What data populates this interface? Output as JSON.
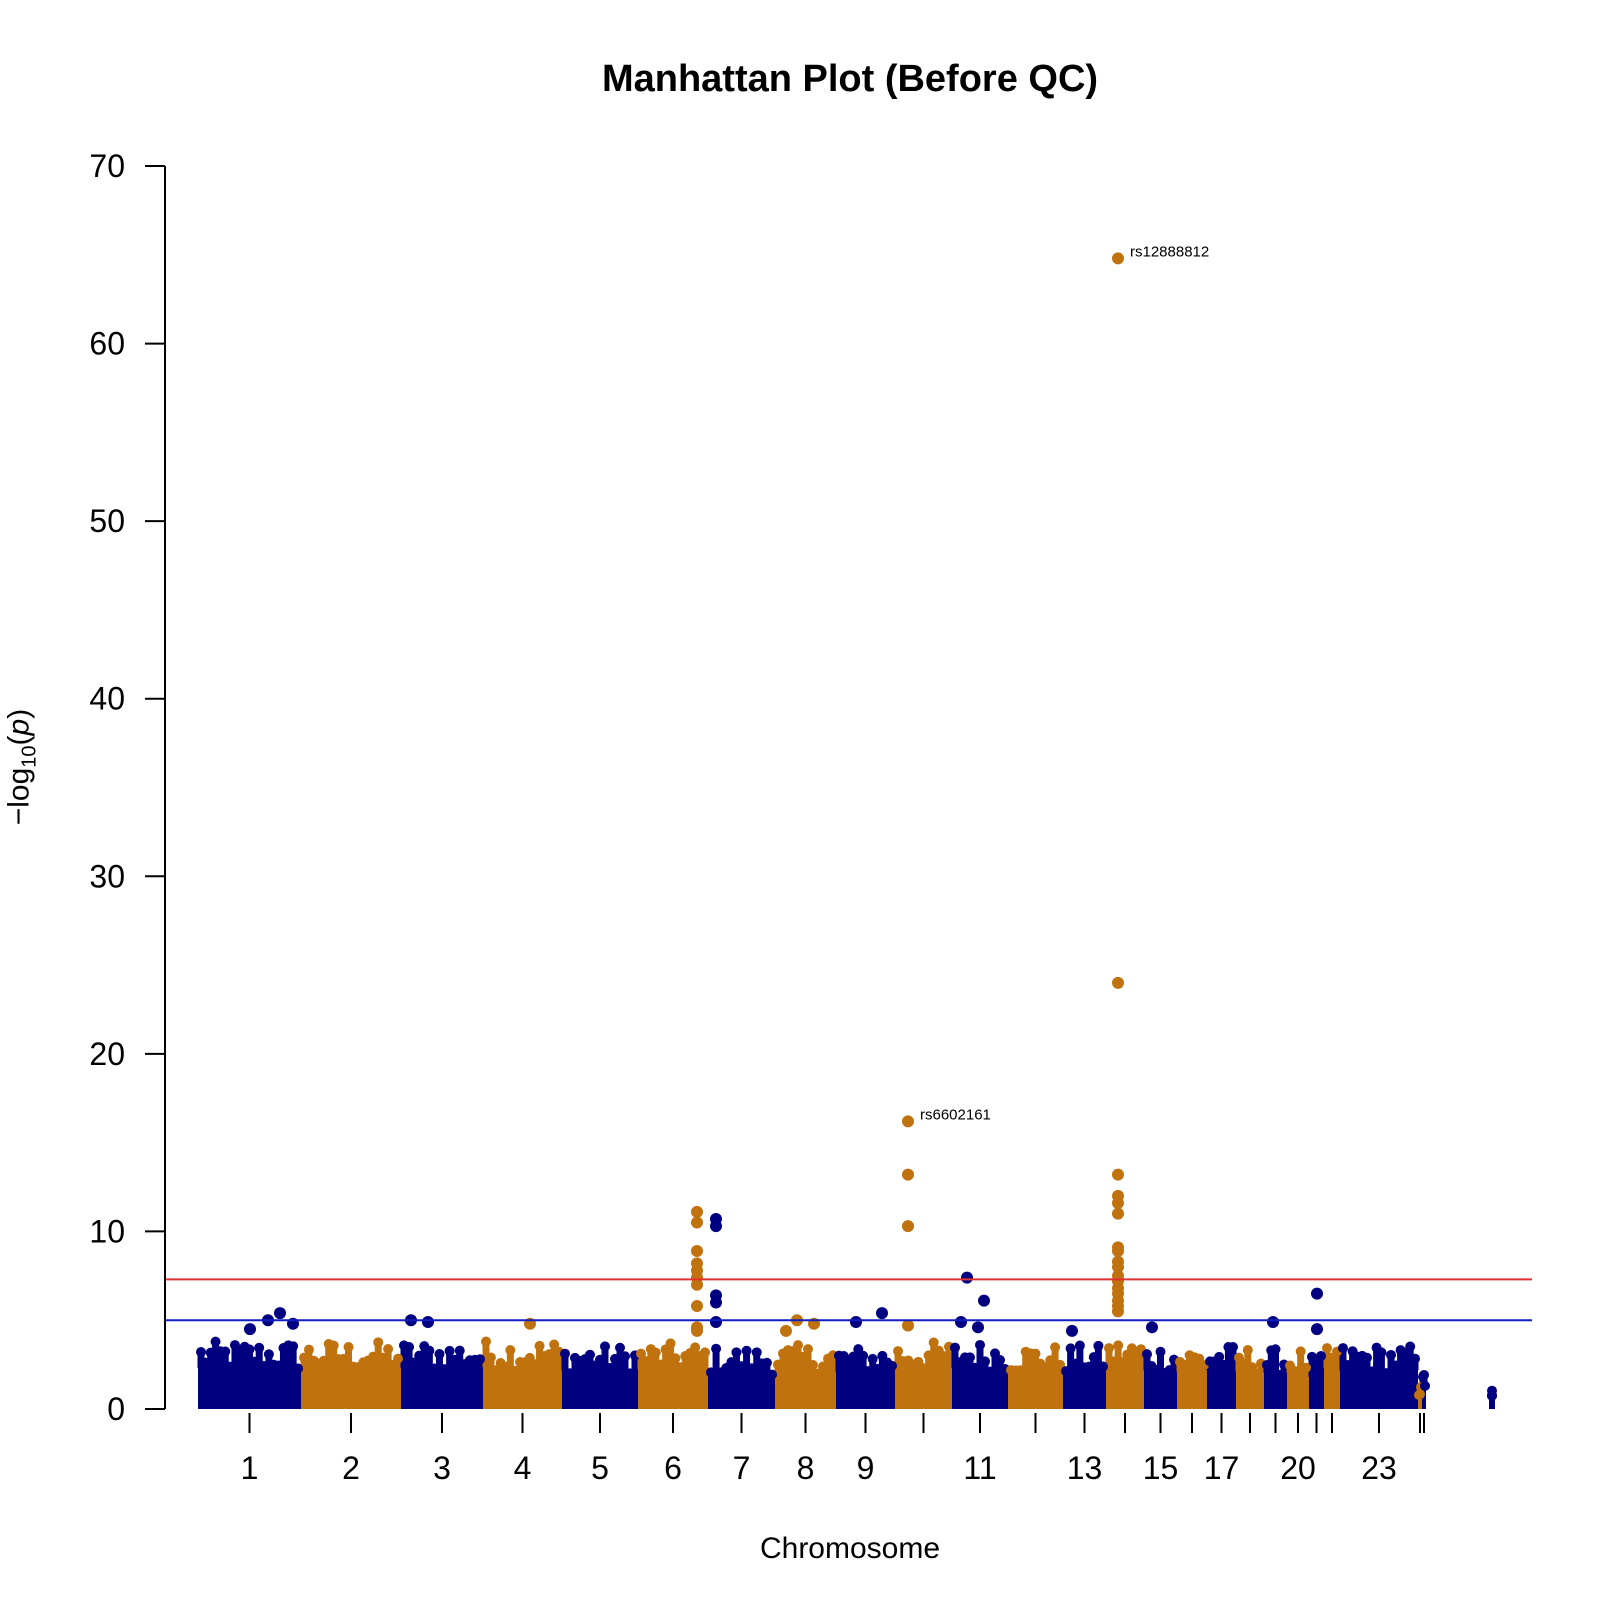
{
  "chart_data": {
    "type": "scatter",
    "title": "Manhattan Plot (Before QC)",
    "xlabel": "Chromosome",
    "ylabel": {
      "prefix": "−log",
      "subscript": "10",
      "open": "(",
      "var": "p",
      "close": ")"
    },
    "ylim": [
      0,
      70
    ],
    "yticks": [
      "0",
      "10",
      "20",
      "30",
      "40",
      "50",
      "60",
      "70"
    ],
    "colors": {
      "odd": "#000080",
      "even": "#C0720F",
      "genome_wide_line": "#E03030",
      "suggestive_line": "#1020C0"
    },
    "genome_wide_threshold": 7.3,
    "suggestive_threshold": 5,
    "chromosome_tick_labels": [
      "1",
      "2",
      "3",
      "4",
      "5",
      "6",
      "7",
      "8",
      "9",
      "11",
      "13",
      "15",
      "17",
      "20",
      "23"
    ],
    "chromosomes": [
      {
        "chr": 1,
        "color": "odd",
        "base_max": 3.8
      },
      {
        "chr": 2,
        "color": "even",
        "base_max": 3.8
      },
      {
        "chr": 3,
        "color": "odd",
        "base_max": 3.8
      },
      {
        "chr": 4,
        "color": "even",
        "base_max": 3.9
      },
      {
        "chr": 5,
        "color": "odd",
        "base_max": 3.6
      },
      {
        "chr": 6,
        "color": "even",
        "base_max": 3.7
      },
      {
        "chr": 7,
        "color": "odd",
        "base_max": 3.5
      },
      {
        "chr": 8,
        "color": "even",
        "base_max": 3.6
      },
      {
        "chr": 9,
        "color": "odd",
        "base_max": 3.5
      },
      {
        "chr": 10,
        "color": "even",
        "base_max": 3.8
      },
      {
        "chr": 11,
        "color": "odd",
        "base_max": 3.8
      },
      {
        "chr": 12,
        "color": "even",
        "base_max": 3.6
      },
      {
        "chr": 13,
        "color": "odd",
        "base_max": 3.6
      },
      {
        "chr": 14,
        "color": "even",
        "base_max": 3.9
      },
      {
        "chr": 15,
        "color": "odd",
        "base_max": 3.6
      },
      {
        "chr": 16,
        "color": "even",
        "base_max": 3.5
      },
      {
        "chr": 17,
        "color": "odd",
        "base_max": 3.6
      },
      {
        "chr": 18,
        "color": "even",
        "base_max": 3.5
      },
      {
        "chr": 19,
        "color": "odd",
        "base_max": 3.4
      },
      {
        "chr": 20,
        "color": "even",
        "base_max": 3.4
      },
      {
        "chr": 21,
        "color": "odd",
        "base_max": 3.0
      },
      {
        "chr": 22,
        "color": "even",
        "base_max": 3.8
      },
      {
        "chr": 23,
        "color": "odd",
        "base_max": 3.6
      },
      {
        "chr": 24,
        "color": "even",
        "base_max": 1.3
      },
      {
        "chr": 25,
        "color": "odd",
        "base_max": 2.0
      },
      {
        "chr": 26,
        "color": "odd",
        "base_max": 1.1
      }
    ],
    "highlight_points": [
      {
        "chr": 1,
        "y": 4.5,
        "color": "odd"
      },
      {
        "chr": 1,
        "y": 5.4,
        "color": "odd"
      },
      {
        "chr": 1,
        "y": 5.0,
        "color": "odd"
      },
      {
        "chr": 1,
        "y": 4.8,
        "color": "odd"
      },
      {
        "chr": 3,
        "y": 5.0,
        "color": "odd"
      },
      {
        "chr": 3,
        "y": 4.9,
        "color": "odd"
      },
      {
        "chr": 4,
        "y": 4.8,
        "color": "even"
      },
      {
        "chr": 6,
        "y": 4.6,
        "color": "even"
      },
      {
        "chr": 6,
        "y": 11.1,
        "color": "even"
      },
      {
        "chr": 6,
        "y": 10.5,
        "color": "even"
      },
      {
        "chr": 6,
        "y": 8.9,
        "color": "even"
      },
      {
        "chr": 6,
        "y": 8.2,
        "color": "even"
      },
      {
        "chr": 6,
        "y": 7.8,
        "color": "even"
      },
      {
        "chr": 6,
        "y": 7.4,
        "color": "even"
      },
      {
        "chr": 6,
        "y": 7.0,
        "color": "even"
      },
      {
        "chr": 6,
        "y": 5.8,
        "color": "even"
      },
      {
        "chr": 6,
        "y": 4.4,
        "color": "even"
      },
      {
        "chr": 7,
        "y": 10.7,
        "color": "odd"
      },
      {
        "chr": 7,
        "y": 10.3,
        "color": "odd"
      },
      {
        "chr": 7,
        "y": 6.4,
        "color": "odd"
      },
      {
        "chr": 7,
        "y": 6.0,
        "color": "odd"
      },
      {
        "chr": 7,
        "y": 4.9,
        "color": "odd"
      },
      {
        "chr": 8,
        "y": 5.0,
        "color": "even"
      },
      {
        "chr": 8,
        "y": 4.8,
        "color": "even"
      },
      {
        "chr": 8,
        "y": 4.4,
        "color": "even"
      },
      {
        "chr": 9,
        "y": 5.4,
        "color": "odd"
      },
      {
        "chr": 9,
        "y": 4.9,
        "color": "odd"
      },
      {
        "chr": 10,
        "y": 16.2,
        "color": "even"
      },
      {
        "chr": 10,
        "y": 13.2,
        "color": "even"
      },
      {
        "chr": 10,
        "y": 10.3,
        "color": "even"
      },
      {
        "chr": 10,
        "y": 4.7,
        "color": "even"
      },
      {
        "chr": 11,
        "y": 7.4,
        "color": "odd"
      },
      {
        "chr": 11,
        "y": 6.1,
        "color": "odd"
      },
      {
        "chr": 11,
        "y": 4.9,
        "color": "odd"
      },
      {
        "chr": 11,
        "y": 4.6,
        "color": "odd"
      },
      {
        "chr": 13,
        "y": 4.4,
        "color": "odd"
      },
      {
        "chr": 14,
        "y": 64.8,
        "color": "even"
      },
      {
        "chr": 14,
        "y": 24.0,
        "color": "even"
      },
      {
        "chr": 14,
        "y": 13.2,
        "color": "even"
      },
      {
        "chr": 14,
        "y": 12.0,
        "color": "even"
      },
      {
        "chr": 14,
        "y": 11.6,
        "color": "even"
      },
      {
        "chr": 14,
        "y": 11.0,
        "color": "even"
      },
      {
        "chr": 14,
        "y": 9.1,
        "color": "even"
      },
      {
        "chr": 14,
        "y": 8.9,
        "color": "even"
      },
      {
        "chr": 14,
        "y": 8.3,
        "color": "even"
      },
      {
        "chr": 14,
        "y": 8.0,
        "color": "even"
      },
      {
        "chr": 14,
        "y": 7.5,
        "color": "even"
      },
      {
        "chr": 14,
        "y": 7.2,
        "color": "even"
      },
      {
        "chr": 14,
        "y": 6.8,
        "color": "even"
      },
      {
        "chr": 14,
        "y": 6.5,
        "color": "even"
      },
      {
        "chr": 14,
        "y": 6.1,
        "color": "even"
      },
      {
        "chr": 14,
        "y": 5.8,
        "color": "even"
      },
      {
        "chr": 14,
        "y": 5.5,
        "color": "even"
      },
      {
        "chr": 15,
        "y": 4.6,
        "color": "odd"
      },
      {
        "chr": 19,
        "y": 4.9,
        "color": "odd"
      },
      {
        "chr": 21,
        "y": 6.5,
        "color": "odd"
      },
      {
        "chr": 21,
        "y": 4.5,
        "color": "odd"
      }
    ],
    "annotations": [
      {
        "label": "rs12888812",
        "chr": 14,
        "y": 64.8
      },
      {
        "label": "rs6602161",
        "chr": 10,
        "y": 16.2
      }
    ]
  }
}
